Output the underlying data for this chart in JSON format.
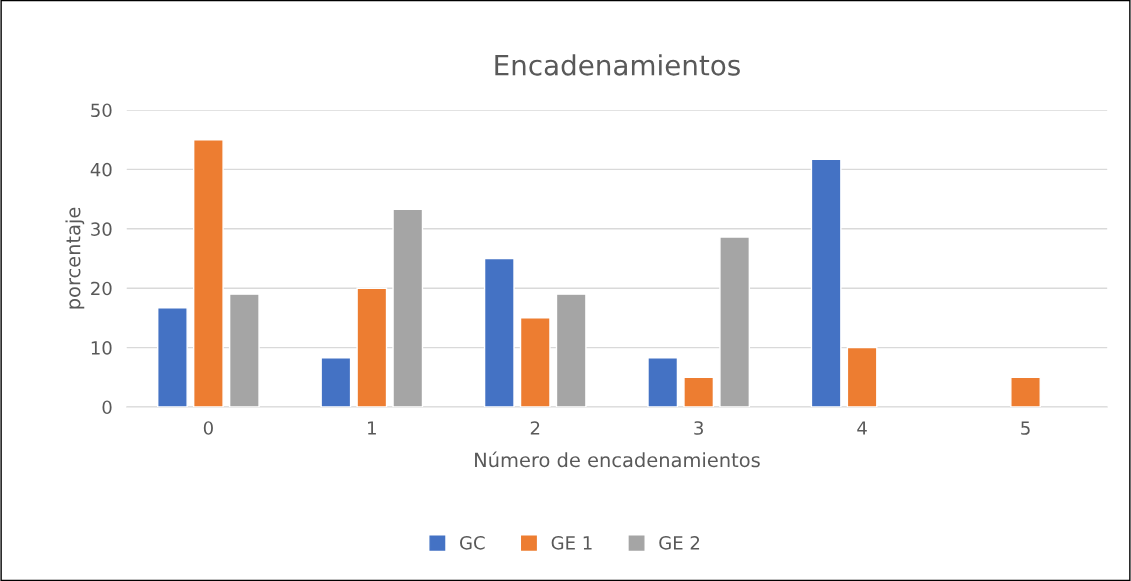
{
  "chart_data": {
    "type": "bar",
    "title": "Encadenamientos",
    "xlabel": "Número de encadenamientos",
    "ylabel": "porcentaje",
    "categories": [
      "0",
      "1",
      "2",
      "3",
      "4",
      "5"
    ],
    "series": [
      {
        "name": "GC",
        "color": "#4472c4",
        "values": [
          16.7,
          8.3,
          25,
          8.3,
          41.7,
          null
        ]
      },
      {
        "name": "GE 1",
        "color": "#ed7d31",
        "values": [
          45,
          20,
          15,
          5,
          10,
          5
        ]
      },
      {
        "name": "GE 2",
        "color": "#a5a5a5",
        "values": [
          19,
          33.3,
          19,
          28.6,
          null,
          null
        ]
      }
    ],
    "ylim": [
      0,
      50
    ],
    "yticks": [
      0,
      10,
      20,
      30,
      40,
      50
    ],
    "grid": "y",
    "legend": "bottom"
  }
}
